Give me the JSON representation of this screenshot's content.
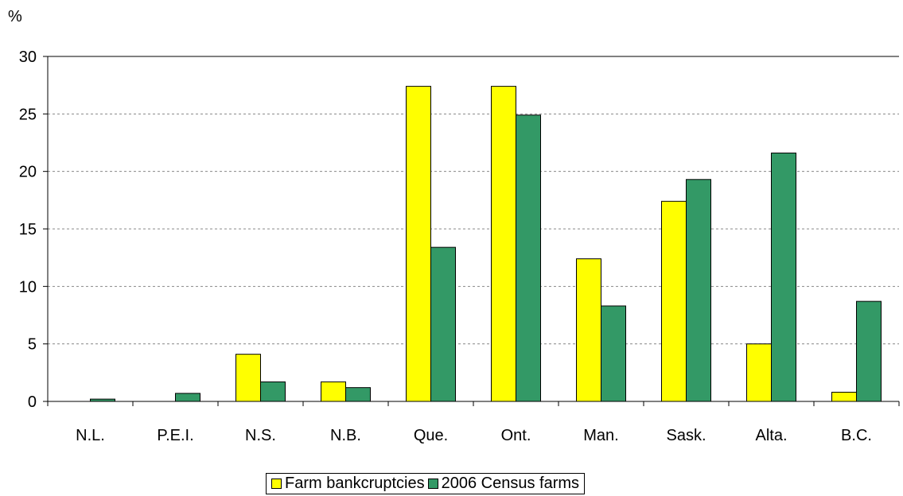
{
  "chart_data": {
    "type": "bar",
    "ylabel": "%",
    "ylim": [
      0,
      30
    ],
    "yticks": [
      0,
      5,
      10,
      15,
      20,
      25,
      30
    ],
    "grid": true,
    "legend_position": "bottom",
    "categories": [
      "N.L.",
      "P.E.I.",
      "N.S.",
      "N.B.",
      "Que.",
      "Ont.",
      "Man.",
      "Sask.",
      "Alta.",
      "B.C."
    ],
    "series": [
      {
        "name": "Farm bankcruptcies",
        "color": "#ffff00",
        "values": [
          0,
          0,
          4.1,
          1.7,
          27.4,
          27.4,
          12.4,
          17.4,
          5.0,
          0.8
        ]
      },
      {
        "name": "2006 Census farms",
        "color": "#339966",
        "values": [
          0.2,
          0.7,
          1.7,
          1.2,
          13.4,
          24.9,
          8.3,
          19.3,
          21.6,
          8.7
        ]
      }
    ]
  }
}
